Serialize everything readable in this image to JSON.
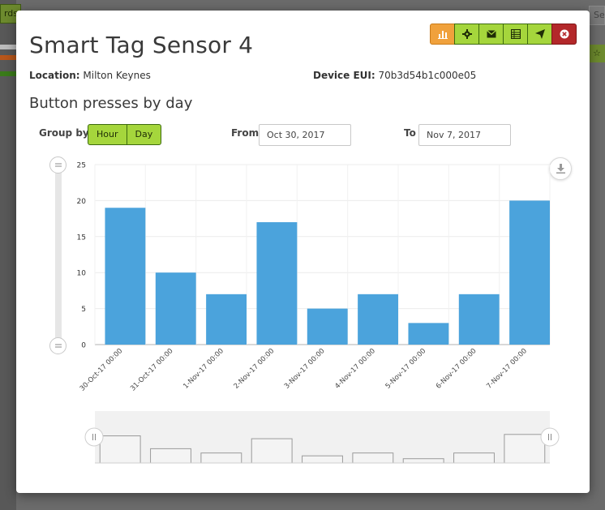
{
  "background": {
    "tab_label": "rds",
    "search_label": "Sea",
    "star_label": "☆"
  },
  "modal": {
    "title": "Smart Tag Sensor 4",
    "location_label": "Location:",
    "location_value": "Milton Keynes",
    "device_eui_label": "Device EUI:",
    "device_eui_value": "70b3d54b1c000e05",
    "subtitle": "Button presses by day",
    "toolbar": [
      {
        "name": "chart-icon",
        "color": "#f0a13c"
      },
      {
        "name": "gear-icon",
        "color": "#a5d63c"
      },
      {
        "name": "envelope-icon",
        "color": "#a5d63c"
      },
      {
        "name": "table-icon",
        "color": "#a5d63c"
      },
      {
        "name": "paper-plane-icon",
        "color": "#a5d63c"
      },
      {
        "name": "close-icon",
        "color": "#b3282a"
      }
    ],
    "group_by_label": "Group by",
    "group_hour": "Hour",
    "group_day": "Day",
    "from_label": "From",
    "from_value": "Oct 30, 2017",
    "to_label": "To",
    "to_value": "Nov 7, 2017"
  },
  "chart_data": {
    "type": "bar",
    "categories": [
      "30-Oct-17 00:00",
      "31-Oct-17 00:00",
      "1-Nov-17 00:00",
      "2-Nov-17 00:00",
      "3-Nov-17 00:00",
      "4-Nov-17 00:00",
      "5-Nov-17 00:00",
      "6-Nov-17 00:00",
      "7-Nov-17 00:00"
    ],
    "values": [
      19,
      10,
      7,
      17,
      5,
      7,
      3,
      7,
      20
    ],
    "ylim": [
      0,
      25
    ],
    "yticks": [
      0,
      5,
      10,
      15,
      20,
      25
    ],
    "grid": true,
    "bar_color": "#4ba3dc"
  }
}
